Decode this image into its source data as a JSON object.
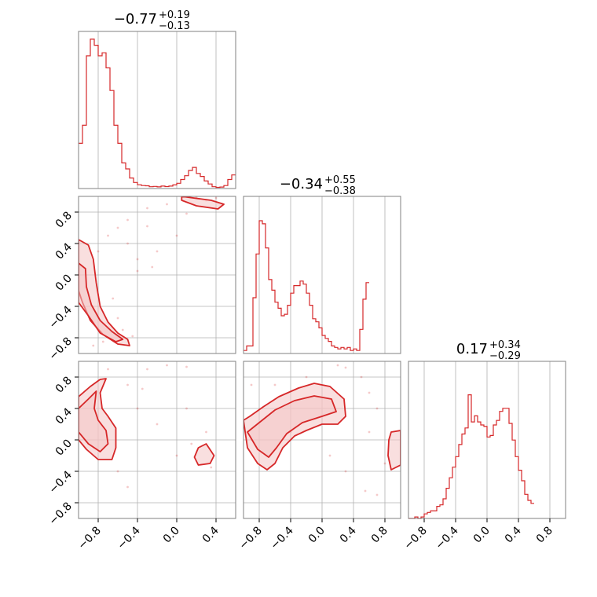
{
  "chart_data": {
    "type": "corner",
    "colors": {
      "main": "#d62728",
      "fill": "#f4c4c4",
      "grid": "#b0b0b0",
      "frame": "#808080"
    },
    "titles": [
      {
        "value": "−0.77",
        "plus": "+0.19",
        "minus": "−0.13"
      },
      {
        "value": "−0.34",
        "plus": "+0.55",
        "minus": "−0.38"
      },
      {
        "value": "0.17",
        "plus": "+0.34",
        "minus": "−0.29"
      }
    ],
    "axes": {
      "p1": {
        "range": [
          -1.0,
          0.6
        ],
        "ticks": [
          -0.8,
          -0.4,
          0.0,
          0.4
        ],
        "tick_labels": [
          "−0.8",
          "−0.4",
          "0.0",
          "0.4"
        ]
      },
      "p2": {
        "range": [
          -1.0,
          1.0
        ],
        "ticks": [
          -0.8,
          -0.4,
          0.0,
          0.4,
          0.8
        ],
        "tick_labels": [
          "−0.8",
          "−0.4",
          "0.0",
          "0.4",
          "0.8"
        ]
      },
      "p3": {
        "range": [
          -1.0,
          1.0
        ],
        "ticks": [
          -0.8,
          -0.4,
          0.0,
          0.4,
          0.8
        ],
        "tick_labels": [
          "−0.8",
          "−0.4",
          "0.0",
          "0.4",
          "0.8"
        ]
      }
    },
    "histograms": [
      {
        "param": "p1",
        "edges_start": -1.0,
        "bin_width": 0.04,
        "counts": [
          0.3,
          0.42,
          0.88,
          0.99,
          0.95,
          0.88,
          0.9,
          0.8,
          0.65,
          0.42,
          0.3,
          0.17,
          0.13,
          0.07,
          0.04,
          0.025,
          0.02,
          0.018,
          0.012,
          0.014,
          0.011,
          0.016,
          0.013,
          0.016,
          0.024,
          0.035,
          0.06,
          0.085,
          0.12,
          0.14,
          0.1,
          0.08,
          0.05,
          0.03,
          0.012,
          0.008,
          0.01,
          0.02,
          0.06,
          0.09
        ]
      },
      {
        "param": "p2",
        "edges_start": -1.0,
        "bin_width": 0.04,
        "counts": [
          0.02,
          0.05,
          0.05,
          0.37,
          0.66,
          0.88,
          0.86,
          0.7,
          0.49,
          0.42,
          0.34,
          0.3,
          0.25,
          0.26,
          0.32,
          0.4,
          0.45,
          0.45,
          0.48,
          0.46,
          0.4,
          0.32,
          0.23,
          0.21,
          0.17,
          0.12,
          0.1,
          0.08,
          0.05,
          0.04,
          0.03,
          0.04,
          0.03,
          0.04,
          0.02,
          0.03,
          0.02,
          0.16,
          0.36,
          0.47
        ]
      },
      {
        "param": "p3",
        "edges_start": -1.0,
        "bin_width": 0.04,
        "counts": [
          0.0,
          0.0,
          0.01,
          0.0,
          0.01,
          0.03,
          0.04,
          0.05,
          0.05,
          0.08,
          0.09,
          0.13,
          0.2,
          0.27,
          0.34,
          0.41,
          0.49,
          0.56,
          0.6,
          0.82,
          0.64,
          0.68,
          0.64,
          0.62,
          0.61,
          0.54,
          0.55,
          0.62,
          0.65,
          0.71,
          0.73,
          0.73,
          0.63,
          0.52,
          0.41,
          0.32,
          0.25,
          0.16,
          0.12,
          0.1
        ]
      }
    ],
    "panels_2d": [
      {
        "x": "p1",
        "y": "p2",
        "scatter": [
          [
            0.4,
            0.98
          ],
          [
            0.2,
            0.99
          ],
          [
            0.3,
            0.95
          ],
          [
            -0.1,
            0.9
          ],
          [
            -0.3,
            0.85
          ],
          [
            -0.5,
            0.7
          ],
          [
            -0.6,
            0.6
          ],
          [
            -0.7,
            0.5
          ],
          [
            -0.8,
            0.3
          ],
          [
            -0.2,
            0.3
          ],
          [
            0.0,
            0.5
          ],
          [
            -0.4,
            0.2
          ],
          [
            -0.5,
            0.4
          ],
          [
            -0.3,
            0.62
          ],
          [
            0.1,
            0.78
          ],
          [
            -0.65,
            -0.3
          ],
          [
            -0.6,
            -0.55
          ],
          [
            -0.55,
            -0.7
          ],
          [
            -0.45,
            -0.78
          ],
          [
            -0.4,
            0.05
          ],
          [
            -0.25,
            0.1
          ],
          [
            -0.85,
            -0.9
          ],
          [
            -0.75,
            -0.85
          ]
        ],
        "contours": [
          [
            [
              0.05,
              1.0
            ],
            [
              0.35,
              0.95
            ],
            [
              0.48,
              0.9
            ],
            [
              0.42,
              0.84
            ],
            [
              0.2,
              0.88
            ],
            [
              0.05,
              0.95
            ]
          ],
          [
            [
              -1.0,
              0.45
            ],
            [
              -0.9,
              0.38
            ],
            [
              -0.85,
              0.2
            ],
            [
              -0.82,
              -0.1
            ],
            [
              -0.78,
              -0.4
            ],
            [
              -0.7,
              -0.6
            ],
            [
              -0.6,
              -0.74
            ],
            [
              -0.5,
              -0.82
            ],
            [
              -0.48,
              -0.9
            ],
            [
              -0.6,
              -0.88
            ],
            [
              -0.75,
              -0.76
            ],
            [
              -0.88,
              -0.58
            ],
            [
              -0.96,
              -0.35
            ],
            [
              -1.0,
              -0.2
            ]
          ],
          [
            [
              -1.0,
              0.15
            ],
            [
              -0.93,
              0.08
            ],
            [
              -0.92,
              -0.15
            ],
            [
              -0.87,
              -0.38
            ],
            [
              -0.78,
              -0.58
            ],
            [
              -0.66,
              -0.72
            ],
            [
              -0.55,
              -0.82
            ],
            [
              -0.62,
              -0.85
            ],
            [
              -0.78,
              -0.74
            ],
            [
              -0.9,
              -0.52
            ],
            [
              -1.0,
              -0.35
            ]
          ]
        ]
      },
      {
        "x": "p1",
        "y": "p3",
        "scatter": [
          [
            -0.3,
            0.9
          ],
          [
            -0.1,
            0.95
          ],
          [
            0.1,
            0.93
          ],
          [
            -0.5,
            0.7
          ],
          [
            -0.4,
            0.4
          ],
          [
            -0.2,
            0.2
          ],
          [
            0.1,
            0.4
          ],
          [
            0.3,
            0.1
          ],
          [
            -0.6,
            -0.4
          ],
          [
            -0.5,
            -0.6
          ],
          [
            0.0,
            -0.2
          ],
          [
            0.35,
            -0.35
          ],
          [
            0.15,
            -0.05
          ],
          [
            -0.7,
            0.9
          ],
          [
            -0.35,
            0.65
          ]
        ],
        "contours": [
          [
            [
              -1.0,
              0.55
            ],
            [
              -0.88,
              0.68
            ],
            [
              -0.78,
              0.77
            ],
            [
              -0.72,
              0.78
            ],
            [
              -0.78,
              0.6
            ],
            [
              -0.76,
              0.4
            ],
            [
              -0.7,
              0.3
            ],
            [
              -0.62,
              0.15
            ],
            [
              -0.62,
              -0.1
            ],
            [
              -0.66,
              -0.25
            ],
            [
              -0.8,
              -0.25
            ],
            [
              -0.92,
              -0.12
            ],
            [
              -1.0,
              0.0
            ]
          ],
          [
            [
              -1.0,
              0.4
            ],
            [
              -0.9,
              0.52
            ],
            [
              -0.82,
              0.62
            ],
            [
              -0.84,
              0.4
            ],
            [
              -0.8,
              0.25
            ],
            [
              -0.72,
              0.12
            ],
            [
              -0.7,
              -0.05
            ],
            [
              -0.78,
              -0.15
            ],
            [
              -0.9,
              -0.05
            ],
            [
              -1.0,
              0.1
            ]
          ],
          [
            [
              0.22,
              -0.1
            ],
            [
              0.3,
              -0.05
            ],
            [
              0.38,
              -0.2
            ],
            [
              0.34,
              -0.3
            ],
            [
              0.22,
              -0.32
            ],
            [
              0.18,
              -0.22
            ]
          ]
        ]
      },
      {
        "x": "p2",
        "y": "p3",
        "scatter": [
          [
            0.2,
            0.95
          ],
          [
            0.3,
            0.92
          ],
          [
            0.5,
            0.8
          ],
          [
            0.6,
            0.6
          ],
          [
            0.7,
            0.4
          ],
          [
            0.6,
            0.1
          ],
          [
            -0.9,
            0.7
          ],
          [
            -0.6,
            0.7
          ],
          [
            -0.2,
            0.8
          ],
          [
            0.3,
            -0.4
          ],
          [
            0.55,
            -0.65
          ],
          [
            0.8,
            -0.3
          ],
          [
            0.7,
            -0.7
          ],
          [
            0.1,
            -0.2
          ],
          [
            -0.4,
            0.1
          ]
        ],
        "contours": [
          [
            [
              -1.0,
              0.25
            ],
            [
              -0.92,
              0.3
            ],
            [
              -0.75,
              0.42
            ],
            [
              -0.55,
              0.55
            ],
            [
              -0.3,
              0.66
            ],
            [
              -0.1,
              0.72
            ],
            [
              0.1,
              0.68
            ],
            [
              0.28,
              0.52
            ],
            [
              0.3,
              0.3
            ],
            [
              0.2,
              0.2
            ],
            [
              0.0,
              0.2
            ],
            [
              -0.2,
              0.12
            ],
            [
              -0.35,
              0.05
            ],
            [
              -0.5,
              -0.1
            ],
            [
              -0.6,
              -0.3
            ],
            [
              -0.7,
              -0.38
            ],
            [
              -0.82,
              -0.3
            ],
            [
              -0.95,
              -0.1
            ]
          ],
          [
            [
              -0.95,
              0.1
            ],
            [
              -0.8,
              0.22
            ],
            [
              -0.6,
              0.38
            ],
            [
              -0.35,
              0.5
            ],
            [
              -0.1,
              0.56
            ],
            [
              0.12,
              0.52
            ],
            [
              0.18,
              0.36
            ],
            [
              0.0,
              0.3
            ],
            [
              -0.25,
              0.22
            ],
            [
              -0.45,
              0.08
            ],
            [
              -0.58,
              -0.1
            ],
            [
              -0.68,
              -0.22
            ],
            [
              -0.82,
              -0.12
            ]
          ],
          [
            [
              0.88,
              0.1
            ],
            [
              1.0,
              0.12
            ],
            [
              1.0,
              -0.32
            ],
            [
              0.88,
              -0.38
            ],
            [
              0.84,
              -0.2
            ],
            [
              0.85,
              0.0
            ]
          ]
        ]
      }
    ]
  }
}
